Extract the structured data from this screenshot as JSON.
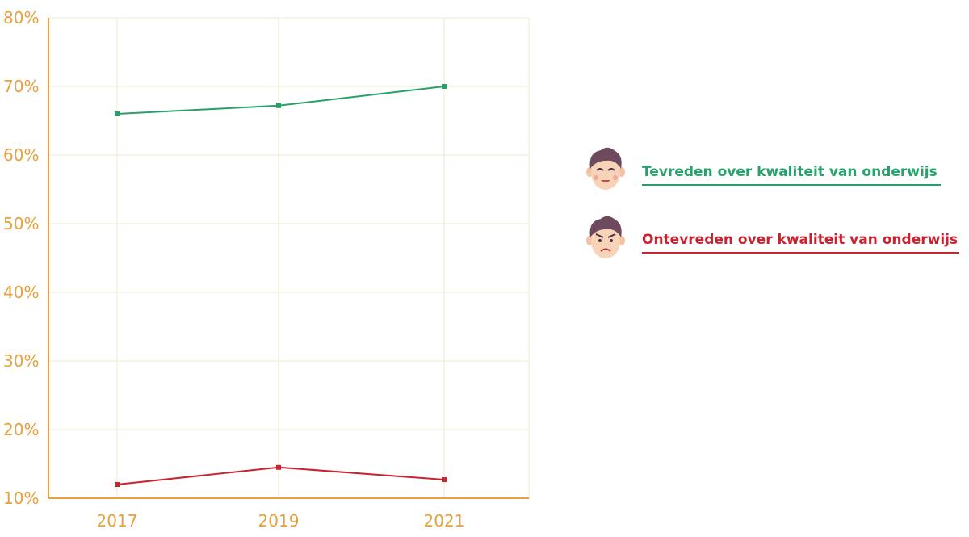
{
  "chart_data": {
    "type": "line",
    "x": [
      "2017",
      "2019",
      "2021"
    ],
    "ylim": [
      10,
      80
    ],
    "yticks": [
      10,
      20,
      30,
      40,
      50,
      60,
      70,
      80
    ],
    "ytick_labels": [
      "10%",
      "20%",
      "30%",
      "40%",
      "50%",
      "60%",
      "70%",
      "80%"
    ],
    "grid": true,
    "legend_position": "right",
    "series": [
      {
        "name": "Tevreden over kwaliteit van onderwijs",
        "values": [
          66,
          67.2,
          70
        ],
        "color": "#27a06a",
        "icon": "happy-face-icon"
      },
      {
        "name": "Ontevreden over kwaliteit van onderwijs",
        "values": [
          12,
          14.5,
          12.7
        ],
        "color": "#c8232f",
        "icon": "angry-face-icon"
      }
    ],
    "colors": {
      "axis": "#e8a03a",
      "grid": "#f3ead2"
    }
  }
}
